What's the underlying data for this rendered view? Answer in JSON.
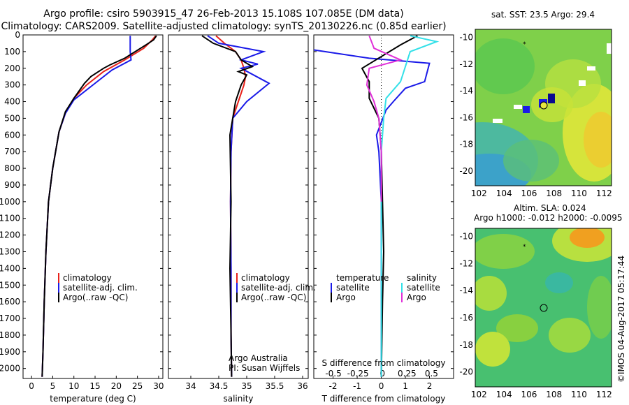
{
  "header": {
    "title_line1": "Argo profile: csiro 5903915_47 26-Feb-2013 15.108S 107.085E (DM data)",
    "title_line2": "Climatology: CARS2009. Satellite-adjusted climatology: synTS_20130226.nc (0.85d earlier)"
  },
  "colors": {
    "climatology": "#e8211a",
    "satellite": "#1a1ae8",
    "argo": "#000000",
    "sal_satellite": "#33e0e8",
    "sal_argo": "#e030d8"
  },
  "chart_data": [
    {
      "type": "line",
      "id": "temperature",
      "xlabel": "temperature (deg C)",
      "ylabel": "",
      "xlim": [
        -2,
        31
      ],
      "ylim": [
        2060,
        0
      ],
      "xticks": [
        "0",
        "5",
        "10",
        "15",
        "20",
        "25",
        "30"
      ],
      "yticks": [
        "0",
        "100",
        "200",
        "300",
        "400",
        "500",
        "600",
        "700",
        "800",
        "900",
        "1000",
        "1100",
        "1200",
        "1300",
        "1400",
        "1500",
        "1600",
        "1700",
        "1800",
        "1900",
        "2000"
      ],
      "legend": [
        "climatology",
        "satellite-adj. clim.",
        "Argo(..raw -QC)"
      ],
      "series": [
        {
          "name": "climatology",
          "color": "#e8211a",
          "x": [
            29.3,
            28.5,
            26.5,
            22,
            17,
            13,
            10,
            8,
            6.5,
            5,
            4,
            3.4,
            3.0,
            2.7,
            2.5
          ],
          "y": [
            5,
            30,
            80,
            150,
            220,
            300,
            380,
            470,
            580,
            800,
            1000,
            1300,
            1600,
            1900,
            2050
          ]
        },
        {
          "name": "satellite-adj. clim.",
          "color": "#1a1ae8",
          "x": [
            23.3,
            23.3,
            23.3,
            23.5,
            19,
            14,
            10,
            8,
            6.5,
            5,
            4,
            3.4,
            3.0,
            2.7,
            2.5
          ],
          "y": [
            5,
            70,
            100,
            150,
            210,
            310,
            390,
            470,
            580,
            800,
            1000,
            1300,
            1600,
            1900,
            2050
          ]
        },
        {
          "name": "Argo(..raw -QC)",
          "color": "#000000",
          "x": [
            29.5,
            28.8,
            27,
            22,
            18.5,
            17,
            14,
            12.5,
            10,
            8,
            6.5,
            5,
            4,
            3.4,
            3.0,
            2.7,
            2.5
          ],
          "y": [
            5,
            30,
            60,
            140,
            180,
            200,
            250,
            290,
            380,
            460,
            580,
            800,
            1000,
            1300,
            1600,
            1900,
            2050
          ]
        }
      ]
    },
    {
      "type": "line",
      "id": "salinity",
      "xlabel": "salinity",
      "xlim": [
        33.6,
        36.1
      ],
      "ylim": [
        2060,
        0
      ],
      "xticks": [
        "34",
        "34.5",
        "35",
        "35.5",
        "36"
      ],
      "legend": [
        "climatology",
        "satellite-adj. clim.",
        "Argo(..raw -QC)"
      ],
      "annotations": [
        "Argo Australia",
        "PI: Susan Wijffels"
      ],
      "series": [
        {
          "name": "climatology",
          "color": "#e8211a",
          "x": [
            34.45,
            34.6,
            34.8,
            34.9,
            34.95,
            34.98,
            34.95,
            34.85,
            34.75,
            34.72,
            34.71,
            34.72,
            34.72,
            34.73
          ],
          "y": [
            5,
            50,
            100,
            150,
            200,
            250,
            300,
            400,
            500,
            700,
            1000,
            1400,
            1800,
            2050
          ]
        },
        {
          "name": "satellite-adj. clim.",
          "color": "#1a1ae8",
          "x": [
            34.3,
            34.5,
            35.3,
            34.9,
            35.2,
            34.9,
            35.4,
            35.0,
            34.75,
            34.72,
            34.71,
            34.72,
            34.72,
            34.73
          ],
          "y": [
            5,
            50,
            100,
            150,
            175,
            200,
            290,
            400,
            500,
            700,
            1000,
            1400,
            1800,
            2050
          ]
        },
        {
          "name": "Argo(..raw -QC)",
          "color": "#000000",
          "x": [
            34.2,
            34.4,
            34.8,
            34.9,
            35.1,
            34.85,
            35.0,
            34.9,
            34.8,
            34.7,
            34.72,
            34.7,
            34.72,
            34.73
          ],
          "y": [
            5,
            50,
            100,
            150,
            190,
            220,
            240,
            300,
            400,
            600,
            1000,
            1400,
            1800,
            2050
          ]
        }
      ]
    },
    {
      "type": "line",
      "id": "difference",
      "xlabel": "T difference from climatology",
      "xlabel_top": "S difference from climatology",
      "xlim": [
        -2.8,
        3.0
      ],
      "ylim": [
        2060,
        0
      ],
      "xticks": [
        "-2",
        "-1",
        "0",
        "1",
        "2"
      ],
      "xticks_top": [
        "-0.5",
        "-0.25",
        "0",
        "0.25",
        "0.5"
      ],
      "legend_temperature": [
        "temperature",
        "satellite",
        "Argo"
      ],
      "legend_salinity": [
        "salinity",
        "satellite",
        "Argo"
      ],
      "series": [
        {
          "name": "satellite",
          "color": "#1a1ae8",
          "x": [
            -2.8,
            -0.5,
            2.0,
            1.8,
            1.0,
            0.5,
            0.2,
            -0.2,
            -0.1,
            0,
            0,
            0
          ],
          "y": [
            90,
            140,
            170,
            280,
            320,
            400,
            450,
            600,
            700,
            1000,
            1500,
            2050
          ]
        },
        {
          "name": "Argo",
          "color": "#000000",
          "x": [
            1.5,
            0.8,
            -0.8,
            -0.5,
            -0.5,
            -0.1,
            0,
            0.05,
            0.1,
            0.05,
            0
          ],
          "y": [
            5,
            60,
            200,
            280,
            380,
            500,
            700,
            1000,
            1300,
            1600,
            2050
          ]
        },
        {
          "name": "salinity satellite",
          "color": "#33e0e8",
          "x": [
            1.2,
            2.3,
            1.2,
            0.8,
            0.2,
            0.1,
            0,
            0,
            0
          ],
          "y": [
            5,
            40,
            100,
            280,
            380,
            500,
            700,
            1200,
            2050
          ]
        },
        {
          "name": "salinity Argo",
          "color": "#e030d8",
          "x": [
            -0.5,
            -0.3,
            0.8,
            -0.5,
            -0.6,
            -0.3,
            -0.1,
            0,
            0
          ],
          "y": [
            5,
            80,
            150,
            200,
            300,
            400,
            500,
            700,
            1000
          ]
        }
      ]
    }
  ],
  "map_sst": {
    "title": "sat. SST: 23.5 Argo: 29.4",
    "xticks": [
      "102",
      "104",
      "106",
      "108",
      "110",
      "112"
    ],
    "yticks": [
      "-10",
      "-12",
      "-14",
      "-16",
      "-18",
      "-20"
    ]
  },
  "map_sla": {
    "title_line1": "Altim. SLA: 0.024",
    "title_line2": "Argo h1000: -0.012 h2000: -0.0095",
    "xticks": [
      "102",
      "104",
      "106",
      "108",
      "110",
      "112"
    ],
    "yticks": [
      "-10",
      "-12",
      "-14",
      "-16",
      "-18",
      "-20"
    ]
  },
  "credit": "©IMOS 04-Aug-2017 05:17:44"
}
